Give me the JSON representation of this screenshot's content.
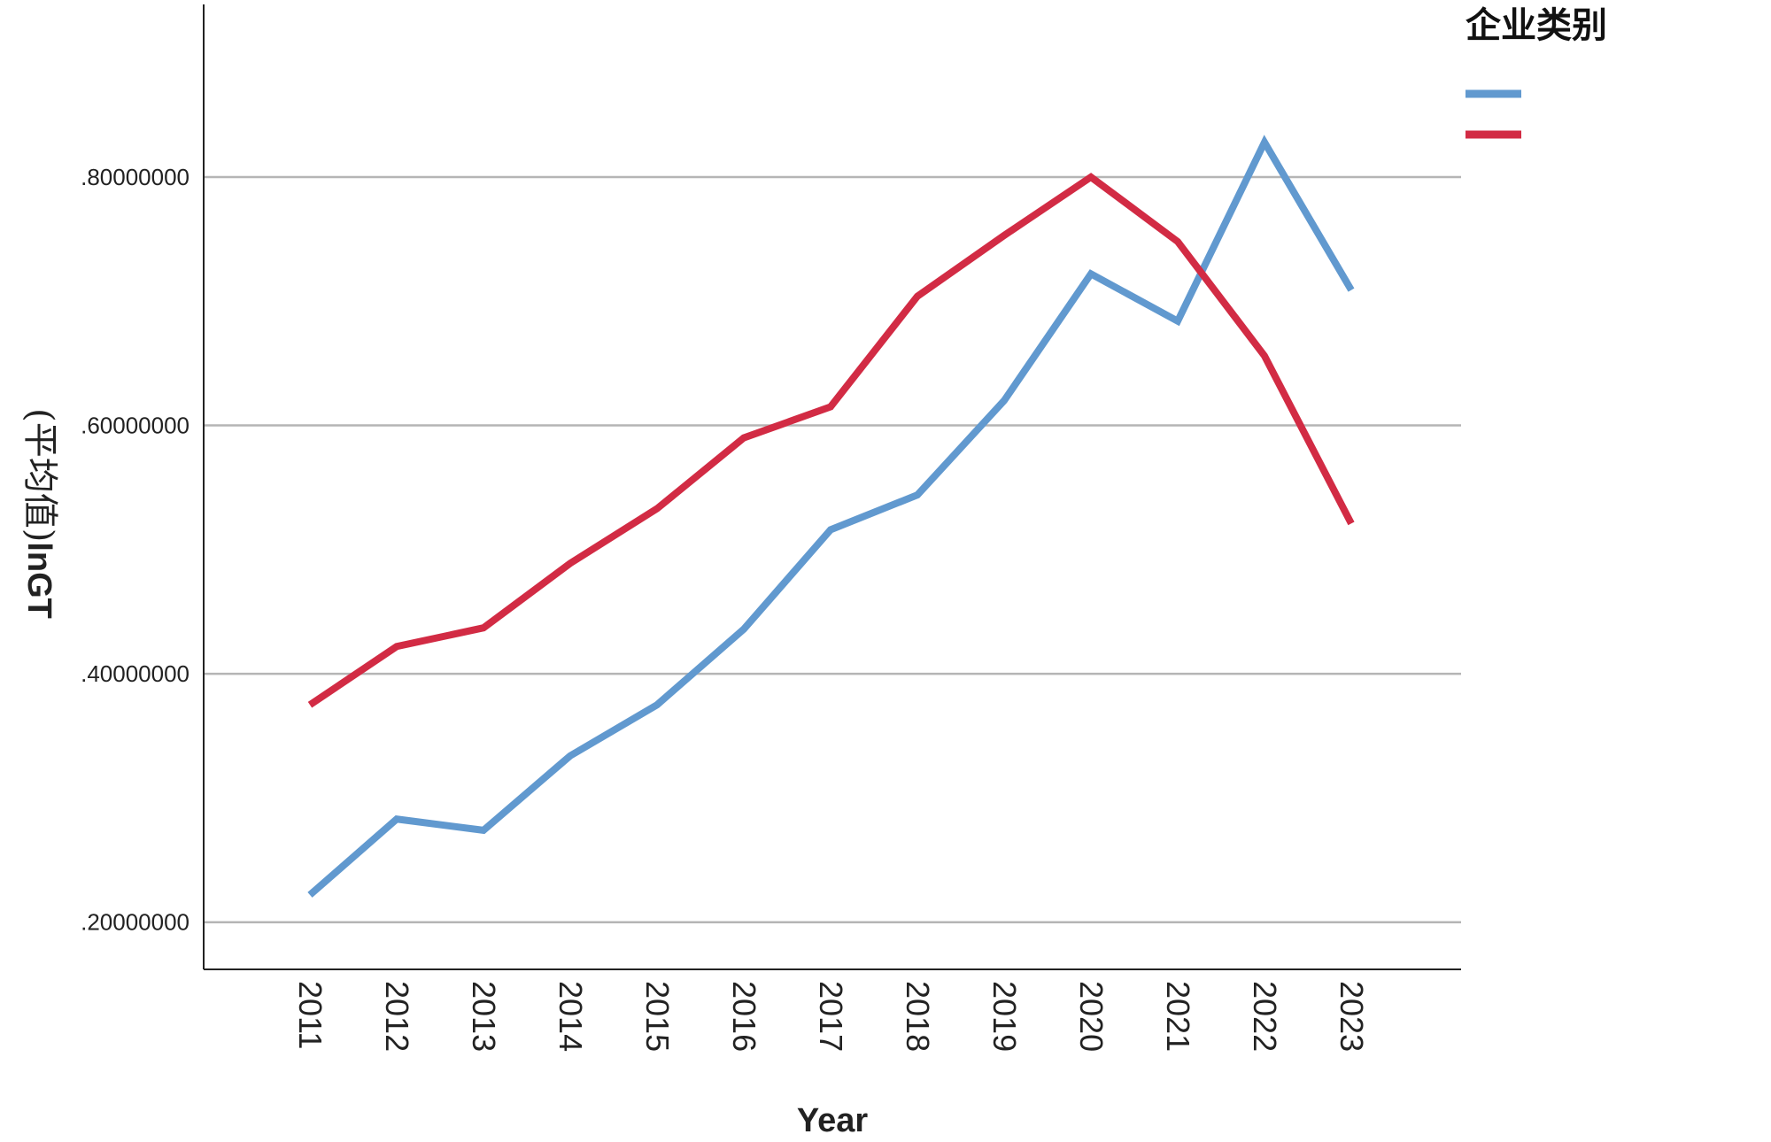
{
  "chart_data": {
    "type": "line",
    "x": [
      "2011",
      "2012",
      "2013",
      "2014",
      "2015",
      "2016",
      "2017",
      "2018",
      "2019",
      "2020",
      "2021",
      "2022",
      "2023"
    ],
    "series": [
      {
        "color": "#6199cf",
        "values": [
          0.222,
          0.283,
          0.274,
          0.334,
          0.375,
          0.436,
          0.516,
          0.544,
          0.62,
          0.722,
          0.684,
          0.828,
          0.709
        ]
      },
      {
        "color": "#d22b44",
        "values": [
          0.375,
          0.422,
          0.437,
          0.489,
          0.533,
          0.59,
          0.615,
          0.704,
          0.753,
          0.8,
          0.748,
          0.656,
          0.521
        ]
      }
    ],
    "xlabel": "Year",
    "ylabel_prefix": "(平均值)",
    "ylabel_suffix": "lnGT",
    "yticks": [
      0.2,
      0.4,
      0.6,
      0.8
    ],
    "ytick_labels": [
      ".20000000",
      ".40000000",
      ".60000000",
      ".80000000"
    ],
    "ylim": [
      0.162,
      0.939
    ],
    "grid": true,
    "legend": {
      "title": "企业类别",
      "placement": "top-right"
    }
  }
}
